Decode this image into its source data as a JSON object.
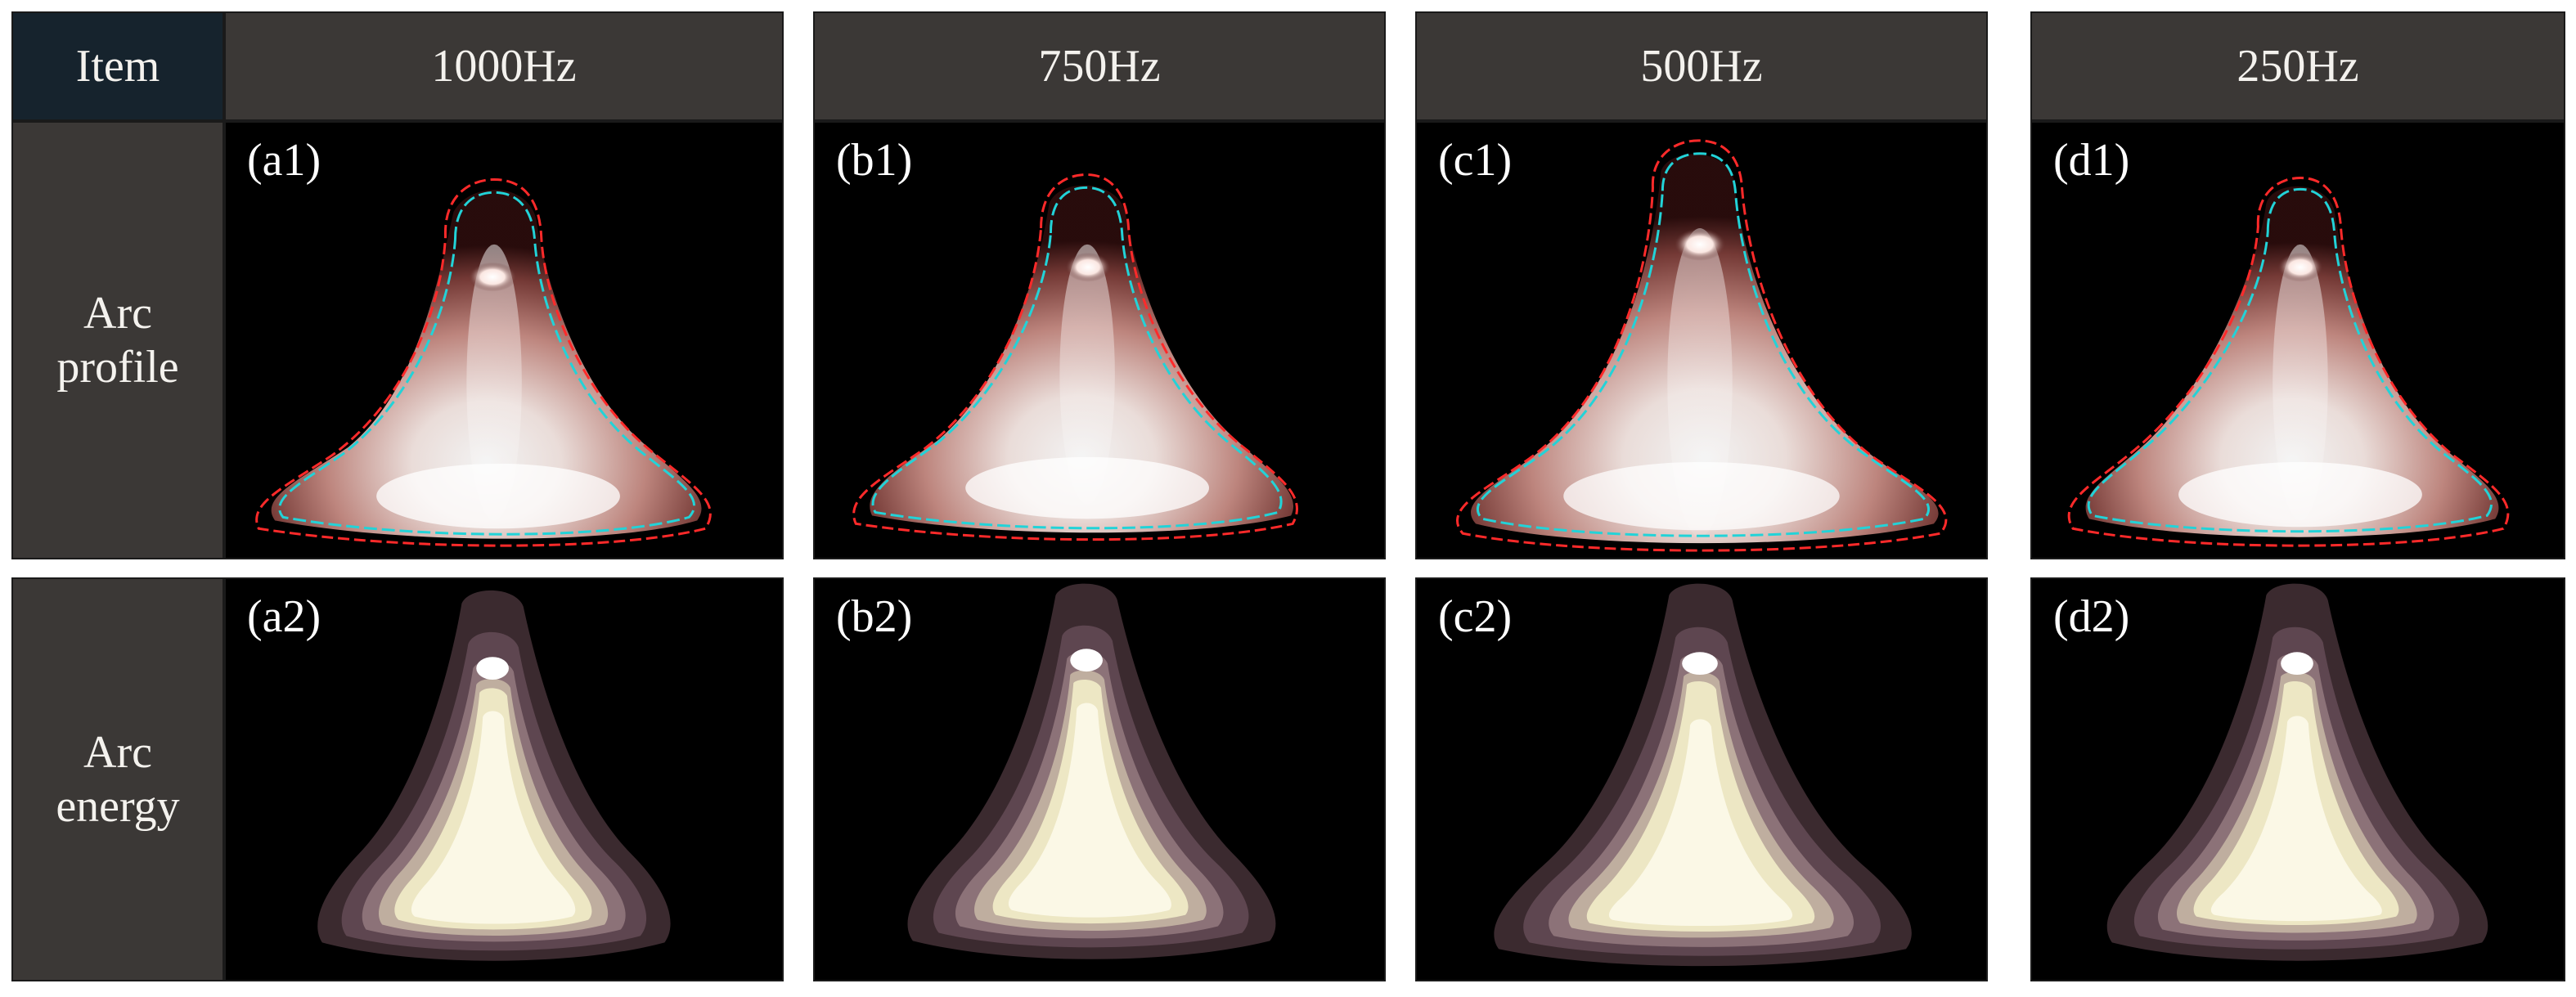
{
  "header": {
    "item": "Item",
    "columns": [
      "1000Hz",
      "750Hz",
      "500Hz",
      "250Hz"
    ]
  },
  "rows": [
    {
      "line1": "Arc",
      "line2": "profile"
    },
    {
      "line1": "Arc",
      "line2": "energy"
    }
  ],
  "panels": {
    "profile": [
      "(a1)",
      "(b1)",
      "(c1)",
      "(d1)"
    ],
    "energy": [
      "(a2)",
      "(b2)",
      "(c2)",
      "(d2)"
    ]
  },
  "colors": {
    "outline_red": "#ff2a2a",
    "outline_cyan": "#22d3d8"
  }
}
